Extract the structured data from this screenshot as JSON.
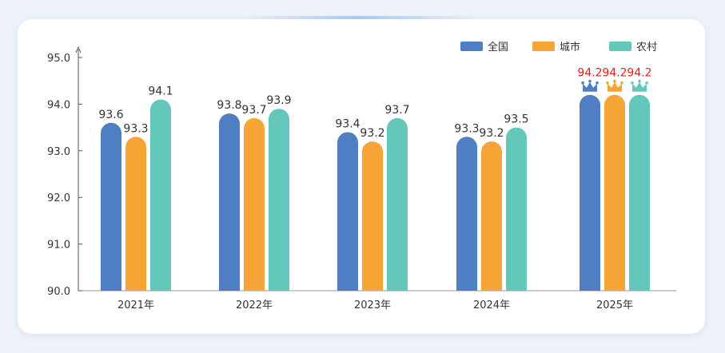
{
  "chart_data": {
    "type": "bar",
    "categories": [
      "2021年",
      "2022年",
      "2023年",
      "2024年",
      "2025年"
    ],
    "series": [
      {
        "name": "全国",
        "color": "#4f7fc2",
        "values": [
          93.6,
          93.8,
          93.4,
          93.3,
          94.2
        ]
      },
      {
        "name": "城市",
        "color": "#f7a436",
        "values": [
          93.3,
          93.7,
          93.2,
          93.2,
          94.2
        ]
      },
      {
        "name": "农村",
        "color": "#63c7bb",
        "values": [
          94.1,
          93.9,
          93.7,
          93.5,
          94.2
        ]
      }
    ],
    "y_ticks": [
      "90.0",
      "91.0",
      "92.0",
      "93.0",
      "94.0",
      "95.0"
    ],
    "ylim": [
      90,
      95
    ],
    "highlight": {
      "category_index": 4,
      "value_color": "#e02020",
      "icon": "crown-icon"
    },
    "legend_position": "top-right",
    "grid": false
  }
}
